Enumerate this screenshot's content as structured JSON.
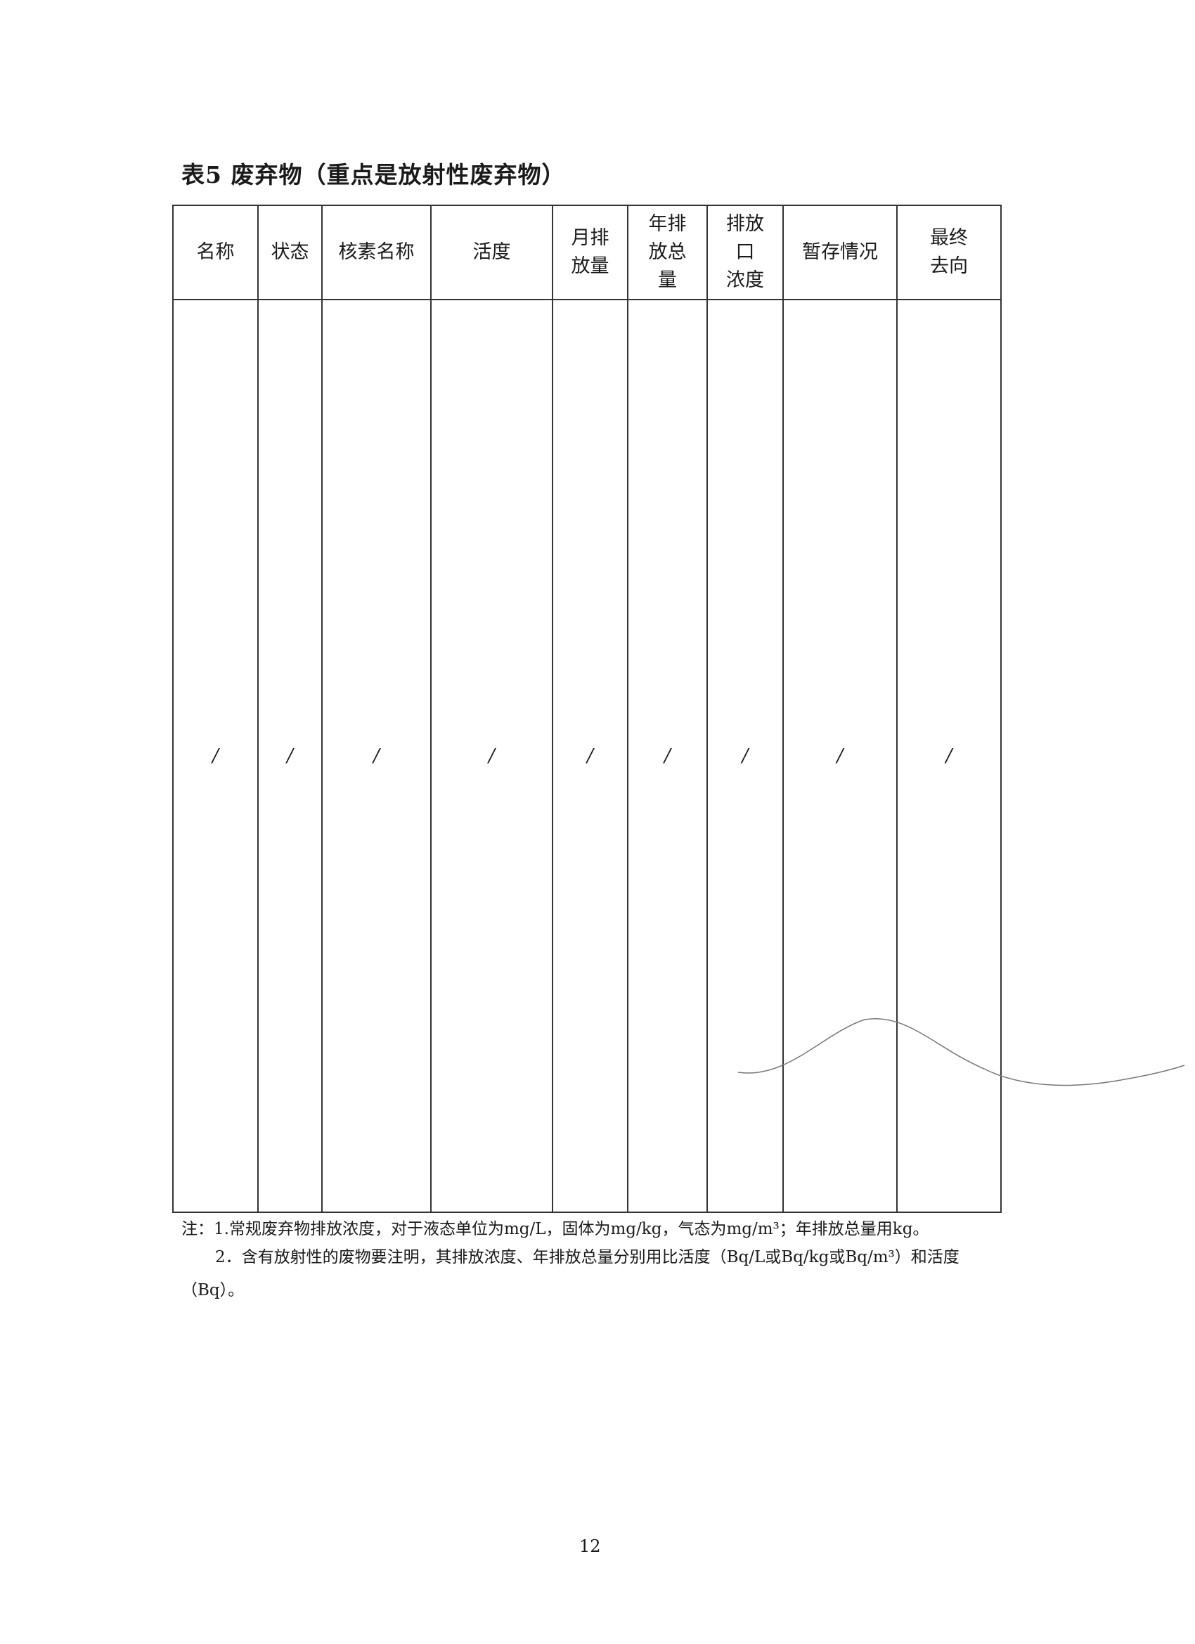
{
  "title": "表5  废弃物（重点是放射性废弃物）",
  "table": {
    "headers": [
      [
        "名称"
      ],
      [
        "状态"
      ],
      [
        "核素名称"
      ],
      [
        "活度"
      ],
      [
        "月排",
        "放量"
      ],
      [
        "年排",
        "放总",
        "量"
      ],
      [
        "排放",
        "口",
        "浓度"
      ],
      [
        "暂存情况"
      ],
      [
        "最终",
        "去向"
      ]
    ],
    "row": [
      "/",
      "/",
      "/",
      "/",
      "/",
      "/",
      "/",
      "/",
      "/"
    ]
  },
  "notes": {
    "note1": "注：1.常规废弃物排放浓度，对于液态单位为mg/L，固体为mg/kg，气态为mg/m³；年排放总量用kg。",
    "note2_line1": "2．含有放射性的废物要注明，其排放浓度、年排放总量分别用比活度（Bq/L或Bq/kg或Bq/m³）和活度",
    "note2_line2": "（Bq）。"
  },
  "page_number": "12"
}
